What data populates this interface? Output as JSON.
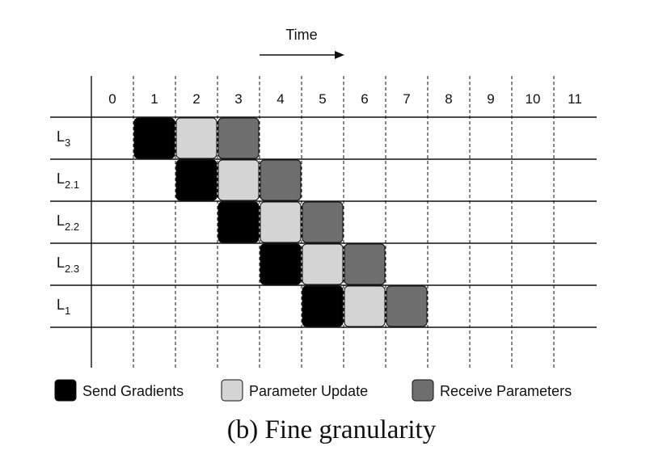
{
  "time_label": "Time",
  "columns": [
    "0",
    "1",
    "2",
    "3",
    "4",
    "5",
    "6",
    "7",
    "8",
    "9",
    "10",
    "11"
  ],
  "rows": [
    {
      "base": "L",
      "sub": "3"
    },
    {
      "base": "L",
      "sub": "2.1"
    },
    {
      "base": "L",
      "sub": "2.2"
    },
    {
      "base": "L",
      "sub": "2.3"
    },
    {
      "base": "L",
      "sub": "1"
    }
  ],
  "tasks": [
    {
      "row": 0,
      "col": 1,
      "kind": "send"
    },
    {
      "row": 0,
      "col": 2,
      "kind": "update"
    },
    {
      "row": 0,
      "col": 3,
      "kind": "receive"
    },
    {
      "row": 1,
      "col": 2,
      "kind": "send"
    },
    {
      "row": 1,
      "col": 3,
      "kind": "update"
    },
    {
      "row": 1,
      "col": 4,
      "kind": "receive"
    },
    {
      "row": 2,
      "col": 3,
      "kind": "send"
    },
    {
      "row": 2,
      "col": 4,
      "kind": "update"
    },
    {
      "row": 2,
      "col": 5,
      "kind": "receive"
    },
    {
      "row": 3,
      "col": 4,
      "kind": "send"
    },
    {
      "row": 3,
      "col": 5,
      "kind": "update"
    },
    {
      "row": 3,
      "col": 6,
      "kind": "receive"
    },
    {
      "row": 4,
      "col": 5,
      "kind": "send"
    },
    {
      "row": 4,
      "col": 6,
      "kind": "update"
    },
    {
      "row": 4,
      "col": 7,
      "kind": "receive"
    }
  ],
  "legend": [
    {
      "kind": "send",
      "label": "Send Gradients",
      "color": "#000000"
    },
    {
      "kind": "update",
      "label": "Parameter Update",
      "color": "#d4d4d4"
    },
    {
      "kind": "receive",
      "label": "Receive Parameters",
      "color": "#6e6e6e"
    }
  ],
  "caption": "(b) Fine granularity"
}
